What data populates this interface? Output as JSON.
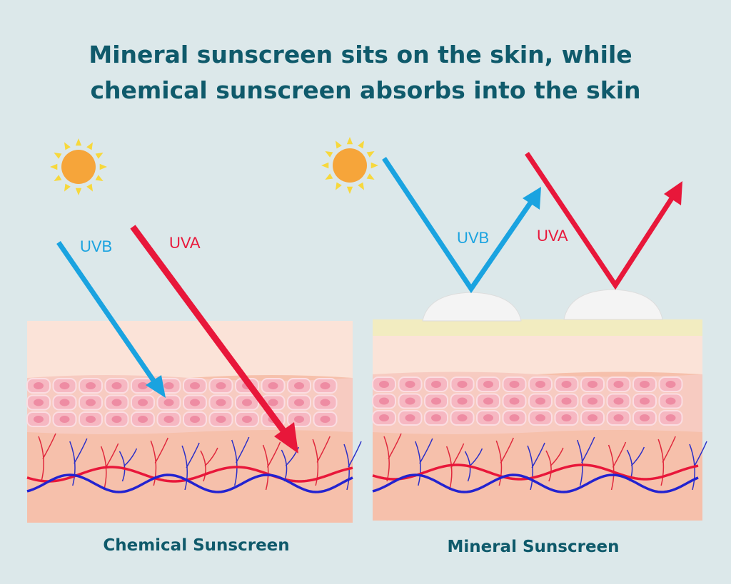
{
  "title": [
    "Mineral sunscreen sits on the skin, while",
    "chemical sunscreen absorbs into the skin"
  ],
  "panels": [
    {
      "caption": "Chemical Sunscreen",
      "labels": [
        "UVB",
        "UVA"
      ]
    },
    {
      "caption": "Mineral Sunscreen",
      "labels": [
        "UVB",
        "UVA"
      ]
    }
  ]
}
